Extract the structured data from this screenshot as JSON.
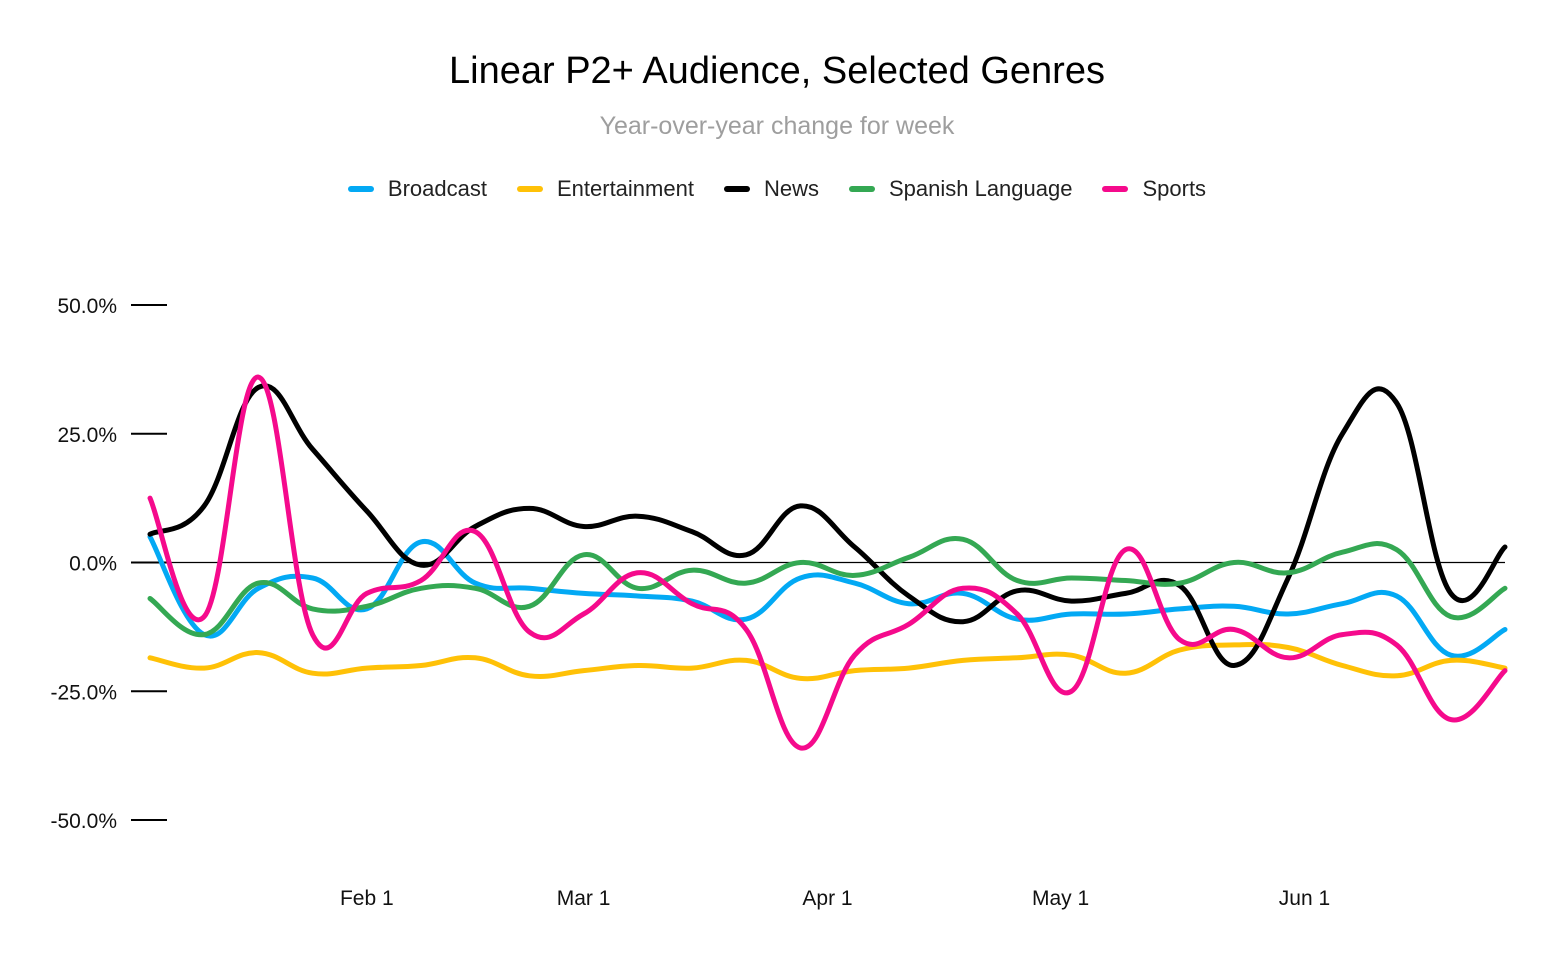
{
  "chart_data": {
    "type": "line",
    "title": "Linear P2+ Audience, Selected Genres",
    "subtitle": "Year-over-year change for week",
    "xlabel": "",
    "ylabel": "",
    "legend_position": "top",
    "grid": false,
    "x_ticks": [
      "Feb 1",
      "Mar 1",
      "Apr 1",
      "May 1",
      "Jun 1"
    ],
    "x_tick_weeks": [
      4.0,
      8.0,
      12.5,
      16.8,
      21.3
    ],
    "y_ticks": [
      "50.0%",
      "25.0%",
      "0.0%",
      "-25.0%",
      "-50.0%"
    ],
    "y_tick_values": [
      50,
      25,
      0,
      -25,
      -50
    ],
    "ylim": [
      -50,
      50
    ],
    "xlim": [
      0,
      25
    ],
    "x": [
      0,
      1,
      2,
      3,
      4,
      5,
      6,
      7,
      8,
      9,
      10,
      11,
      12,
      13,
      14,
      15,
      16,
      17,
      18,
      19,
      20,
      21,
      22,
      23,
      24,
      25
    ],
    "series": [
      {
        "name": "Broadcast",
        "color": "#03a9f4",
        "values": [
          5,
          -14,
          -5,
          -3,
          -9,
          4,
          -4,
          -5,
          -6,
          -6.5,
          -7.5,
          -11,
          -3,
          -4,
          -8,
          -6,
          -11,
          -10,
          -10,
          -9,
          -8.5,
          -10,
          -8,
          -6.5,
          -18,
          -13
        ]
      },
      {
        "name": "Entertainment",
        "color": "#ffc107",
        "values": [
          -18.5,
          -20.5,
          -17.5,
          -21.5,
          -20.5,
          -20,
          -18.5,
          -22,
          -21,
          -20,
          -20.5,
          -19,
          -22.5,
          -21,
          -20.5,
          -19,
          -18.5,
          -18,
          -21.5,
          -17,
          -16,
          -16.5,
          -20,
          -22,
          -19,
          -20.5
        ]
      },
      {
        "name": "News",
        "color": "#000000",
        "values": [
          5.5,
          11,
          34,
          22,
          10,
          -0.5,
          7,
          10.5,
          7,
          9,
          6,
          1.5,
          11,
          3,
          -6.5,
          -11.5,
          -5.5,
          -7.5,
          -6,
          -4.5,
          -20,
          -3,
          25,
          31,
          -6,
          3
        ]
      },
      {
        "name": "Spanish Language",
        "color": "#34a853",
        "values": [
          -7,
          -14,
          -4,
          -9,
          -8.5,
          -5,
          -5,
          -8.5,
          1.5,
          -5,
          -1.5,
          -4,
          0,
          -2.5,
          1,
          4.5,
          -3.5,
          -3,
          -3.5,
          -4,
          0,
          -2,
          2,
          2.5,
          -10.5,
          -5
        ]
      },
      {
        "name": "Sports",
        "color": "#f50a8c",
        "values": [
          12.5,
          -10.5,
          36,
          -14,
          -6,
          -3.5,
          6,
          -13.5,
          -10,
          -2,
          -8,
          -13,
          -36,
          -18,
          -12,
          -5,
          -10,
          -25,
          2.5,
          -15,
          -13,
          -18.5,
          -14,
          -16,
          -30.5,
          -21
        ]
      }
    ]
  }
}
